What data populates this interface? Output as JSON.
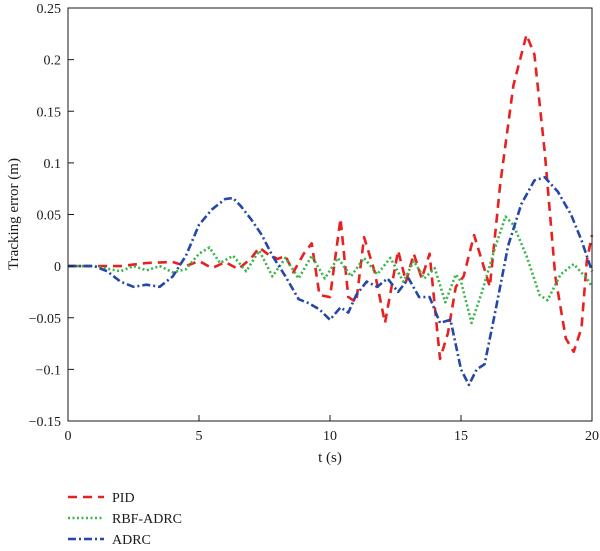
{
  "chart_data": {
    "type": "line",
    "title": "",
    "xlabel": "t (s)",
    "ylabel": "Tracking error (m)",
    "xlim": [
      0,
      20
    ],
    "ylim": [
      -0.15,
      0.25
    ],
    "xticks": [
      0,
      5,
      10,
      15,
      20
    ],
    "yticks": [
      -0.15,
      -0.1,
      -0.05,
      0,
      0.05,
      0.1,
      0.15,
      0.2,
      0.25
    ],
    "xtick_labels": [
      "0",
      "5",
      "10",
      "15",
      "20"
    ],
    "ytick_labels": [
      "−0.15",
      "−0.1",
      "−0.05",
      "0",
      "0.05",
      "0.1",
      "0.15",
      "0.2",
      "0.25"
    ],
    "grid": false,
    "legend_position": "bottom-left, below plot",
    "series": [
      {
        "name": "PID",
        "color": "#e8201f",
        "dash": "dashed",
        "points": [
          [
            0,
            0
          ],
          [
            1,
            0
          ],
          [
            2,
            0
          ],
          [
            3,
            0.003
          ],
          [
            4,
            0.004
          ],
          [
            4.5,
            0
          ],
          [
            5,
            0.005
          ],
          [
            5.5,
            -0.002
          ],
          [
            6,
            0.004
          ],
          [
            6.5,
            -0.003
          ],
          [
            7,
            0.008
          ],
          [
            7.3,
            0.018
          ],
          [
            7.6,
            0.012
          ],
          [
            8,
            0.007
          ],
          [
            8.3,
            0.01
          ],
          [
            8.6,
            -0.006
          ],
          [
            9,
            0.012
          ],
          [
            9.3,
            0.022
          ],
          [
            9.6,
            -0.028
          ],
          [
            10,
            -0.03
          ],
          [
            10.4,
            0.046
          ],
          [
            10.7,
            -0.03
          ],
          [
            11,
            -0.035
          ],
          [
            11.3,
            0.028
          ],
          [
            11.7,
            -0.005
          ],
          [
            12.1,
            -0.055
          ],
          [
            12.6,
            0.015
          ],
          [
            12.9,
            -0.015
          ],
          [
            13.2,
            0.012
          ],
          [
            13.5,
            -0.012
          ],
          [
            13.8,
            0.012
          ],
          [
            14.2,
            -0.09
          ],
          [
            14.5,
            -0.065
          ],
          [
            14.8,
            -0.02
          ],
          [
            15.1,
            -0.01
          ],
          [
            15.5,
            0.03
          ],
          [
            15.8,
            0.005
          ],
          [
            16.1,
            -0.02
          ],
          [
            16.5,
            0.08
          ],
          [
            17,
            0.175
          ],
          [
            17.5,
            0.224
          ],
          [
            17.8,
            0.205
          ],
          [
            18.2,
            0.11
          ],
          [
            18.6,
            -0.01
          ],
          [
            19,
            -0.07
          ],
          [
            19.3,
            -0.083
          ],
          [
            19.6,
            -0.06
          ],
          [
            19.8,
            0.005
          ],
          [
            20,
            0.03
          ]
        ]
      },
      {
        "name": "RBF-ADRC",
        "color": "#39b54a",
        "dash": "dotted",
        "points": [
          [
            0,
            0
          ],
          [
            1,
            0
          ],
          [
            2,
            -0.005
          ],
          [
            2.5,
            0
          ],
          [
            3,
            -0.004
          ],
          [
            3.5,
            0
          ],
          [
            4,
            -0.006
          ],
          [
            4.5,
            -0.003
          ],
          [
            5,
            0.012
          ],
          [
            5.4,
            0.018
          ],
          [
            5.8,
            0.003
          ],
          [
            6.3,
            0.01
          ],
          [
            6.8,
            -0.005
          ],
          [
            7.3,
            0.015
          ],
          [
            7.8,
            -0.01
          ],
          [
            8.3,
            0.008
          ],
          [
            8.8,
            -0.012
          ],
          [
            9.3,
            0.01
          ],
          [
            9.8,
            -0.012
          ],
          [
            10.3,
            0.008
          ],
          [
            10.8,
            -0.01
          ],
          [
            11.3,
            0.008
          ],
          [
            11.8,
            -0.008
          ],
          [
            12.3,
            0.008
          ],
          [
            12.8,
            -0.015
          ],
          [
            13.2,
            0.005
          ],
          [
            13.6,
            -0.012
          ],
          [
            14,
            -0.002
          ],
          [
            14.4,
            -0.035
          ],
          [
            14.8,
            -0.008
          ],
          [
            15,
            -0.015
          ],
          [
            15.4,
            -0.055
          ],
          [
            15.8,
            -0.025
          ],
          [
            16.3,
            0.018
          ],
          [
            16.7,
            0.048
          ],
          [
            17,
            0.04
          ],
          [
            17.5,
            0.01
          ],
          [
            18,
            -0.028
          ],
          [
            18.3,
            -0.033
          ],
          [
            18.8,
            -0.008
          ],
          [
            19.3,
            0.002
          ],
          [
            19.8,
            -0.012
          ],
          [
            20,
            -0.02
          ]
        ]
      },
      {
        "name": "ADRC",
        "color": "#2548a8",
        "dash": "dashdot",
        "points": [
          [
            0,
            0
          ],
          [
            1,
            0
          ],
          [
            1.5,
            -0.005
          ],
          [
            2,
            -0.015
          ],
          [
            2.5,
            -0.02
          ],
          [
            3,
            -0.018
          ],
          [
            3.5,
            -0.02
          ],
          [
            4,
            -0.01
          ],
          [
            4.5,
            0.01
          ],
          [
            5,
            0.04
          ],
          [
            5.5,
            0.055
          ],
          [
            6,
            0.065
          ],
          [
            6.3,
            0.066
          ],
          [
            6.6,
            0.058
          ],
          [
            7,
            0.045
          ],
          [
            7.4,
            0.03
          ],
          [
            7.8,
            0.01
          ],
          [
            8.3,
            -0.01
          ],
          [
            8.8,
            -0.032
          ],
          [
            9.2,
            -0.036
          ],
          [
            9.6,
            -0.042
          ],
          [
            10,
            -0.052
          ],
          [
            10.4,
            -0.04
          ],
          [
            10.7,
            -0.045
          ],
          [
            11,
            -0.028
          ],
          [
            11.4,
            -0.015
          ],
          [
            11.8,
            -0.02
          ],
          [
            12.2,
            -0.012
          ],
          [
            12.6,
            -0.025
          ],
          [
            13,
            -0.012
          ],
          [
            13.4,
            -0.03
          ],
          [
            13.8,
            -0.03
          ],
          [
            14.2,
            -0.055
          ],
          [
            14.6,
            -0.052
          ],
          [
            15,
            -0.1
          ],
          [
            15.3,
            -0.115
          ],
          [
            15.6,
            -0.1
          ],
          [
            15.9,
            -0.095
          ],
          [
            16.3,
            -0.045
          ],
          [
            16.8,
            0.02
          ],
          [
            17.3,
            0.06
          ],
          [
            17.8,
            0.083
          ],
          [
            18.2,
            0.086
          ],
          [
            18.7,
            0.072
          ],
          [
            19.2,
            0.05
          ],
          [
            19.6,
            0.025
          ],
          [
            20,
            -0.005
          ]
        ]
      }
    ]
  }
}
